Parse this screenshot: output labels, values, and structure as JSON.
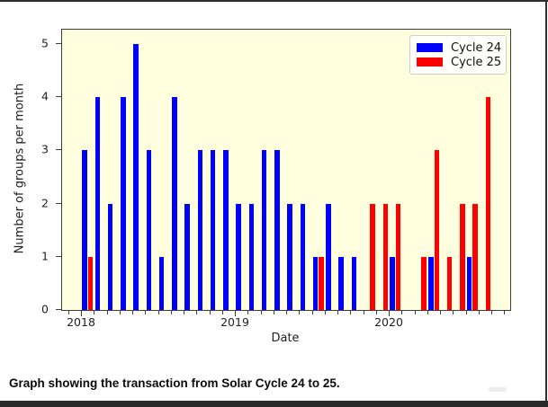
{
  "caption": "Graph showing the transaction from Solar Cycle 24 to 25.",
  "chart_data": {
    "type": "bar",
    "title": "",
    "xlabel": "Date",
    "ylabel": "Number of groups per month",
    "x_tick_labels": [
      "2018",
      "2019",
      "2020"
    ],
    "y_ticks": [
      0,
      1,
      2,
      3,
      4,
      5
    ],
    "ylim": [
      0,
      5.27
    ],
    "x_minor_tick_interval": "1 month",
    "grid": "off",
    "plot_background": "#ffffe0",
    "legend_position": "upper right",
    "months": [
      "2018-01",
      "2018-02",
      "2018-03",
      "2018-04",
      "2018-05",
      "2018-06",
      "2018-07",
      "2018-08",
      "2018-09",
      "2018-10",
      "2018-11",
      "2018-12",
      "2019-01",
      "2019-02",
      "2019-03",
      "2019-04",
      "2019-05",
      "2019-06",
      "2019-07",
      "2019-08",
      "2019-09",
      "2019-10",
      "2019-11",
      "2019-12",
      "2020-01",
      "2020-02",
      "2020-03",
      "2020-04",
      "2020-05",
      "2020-06",
      "2020-07",
      "2020-08"
    ],
    "series": [
      {
        "name": "Cycle 24",
        "color": "#0000ff",
        "values": [
          3,
          4,
          2,
          4,
          5,
          3,
          1,
          4,
          2,
          3,
          3,
          3,
          2,
          2,
          3,
          3,
          2,
          2,
          1,
          2,
          1,
          1,
          0,
          0,
          1,
          0,
          0,
          1,
          0,
          0,
          1,
          0
        ]
      },
      {
        "name": "Cycle 25",
        "color": "#ff0000",
        "values": [
          1,
          0,
          0,
          0,
          0,
          0,
          0,
          0,
          0,
          0,
          0,
          0,
          0,
          0,
          0,
          0,
          0,
          0,
          1,
          0,
          0,
          0,
          2,
          2,
          2,
          0,
          1,
          3,
          1,
          2,
          2,
          4
        ]
      }
    ],
    "legend": {
      "entries": [
        {
          "label": "Cycle 24",
          "color": "#0000ff"
        },
        {
          "label": "Cycle 25",
          "color": "#ff0000"
        }
      ]
    }
  }
}
